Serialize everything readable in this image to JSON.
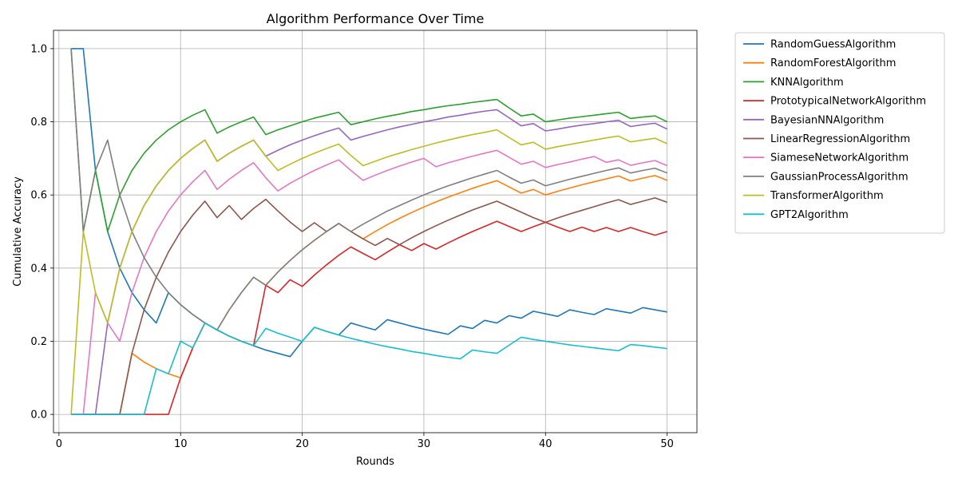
{
  "chart_data": {
    "type": "line",
    "title": "Algorithm Performance Over Time",
    "xlabel": "Rounds",
    "ylabel": "Cumulative Accuracy",
    "xlim": [
      -0.45,
      52.45
    ],
    "ylim": [
      -0.05,
      1.05
    ],
    "xticks": [
      0,
      10,
      20,
      30,
      40,
      50
    ],
    "yticks": [
      0.0,
      0.2,
      0.4,
      0.6,
      0.8,
      1.0
    ],
    "ytick_labels": [
      "0.0",
      "0.2",
      "0.4",
      "0.6",
      "0.8",
      "1.0"
    ],
    "grid": true,
    "legend": "outside-right",
    "x": [
      1,
      2,
      3,
      4,
      5,
      6,
      7,
      8,
      9,
      10,
      11,
      12,
      13,
      14,
      15,
      16,
      17,
      18,
      19,
      20,
      21,
      22,
      23,
      24,
      25,
      26,
      27,
      28,
      29,
      30,
      31,
      32,
      33,
      34,
      35,
      36,
      37,
      38,
      39,
      40,
      41,
      42,
      43,
      44,
      45,
      46,
      47,
      48,
      49,
      50
    ],
    "series": [
      {
        "name": "RandomGuessAlgorithm",
        "color": "#1f77b4",
        "values": [
          1,
          1,
          0.667,
          0.5,
          0.4,
          0.333,
          0.286,
          0.25,
          0.333,
          0.3,
          0.273,
          0.25,
          0.231,
          0.214,
          0.2,
          0.188,
          0.176,
          0.167,
          0.158,
          0.2,
          0.238,
          0.227,
          0.217,
          0.25,
          0.24,
          0.231,
          0.259,
          0.25,
          0.241,
          0.233,
          0.226,
          0.219,
          0.242,
          0.235,
          0.257,
          0.25,
          0.27,
          0.263,
          0.282,
          0.275,
          0.268,
          0.286,
          0.279,
          0.273,
          0.289,
          0.283,
          0.277,
          0.292,
          0.286,
          0.28
        ]
      },
      {
        "name": "RandomForestAlgorithm",
        "color": "#ff7f0e",
        "values": [
          0,
          0,
          0,
          0,
          0,
          0.167,
          0.143,
          0.125,
          0.111,
          0.1,
          0.182,
          0.25,
          0.231,
          0.286,
          0.333,
          0.375,
          0.353,
          0.389,
          0.421,
          0.45,
          0.476,
          0.5,
          0.522,
          0.5,
          0.48,
          0.5,
          0.519,
          0.536,
          0.552,
          0.567,
          0.581,
          0.594,
          0.606,
          0.618,
          0.629,
          0.639,
          0.622,
          0.605,
          0.615,
          0.6,
          0.61,
          0.619,
          0.628,
          0.636,
          0.644,
          0.652,
          0.638,
          0.646,
          0.653,
          0.64
        ]
      },
      {
        "name": "KNNAlgorithm",
        "color": "#2ca02c",
        "values": [
          1,
          0.5,
          0.667,
          0.5,
          0.6,
          0.667,
          0.714,
          0.75,
          0.778,
          0.8,
          0.818,
          0.833,
          0.769,
          0.786,
          0.8,
          0.813,
          0.765,
          0.778,
          0.789,
          0.8,
          0.81,
          0.818,
          0.826,
          0.792,
          0.8,
          0.808,
          0.815,
          0.821,
          0.828,
          0.833,
          0.839,
          0.844,
          0.848,
          0.853,
          0.857,
          0.861,
          0.838,
          0.816,
          0.821,
          0.8,
          0.805,
          0.81,
          0.814,
          0.818,
          0.822,
          0.826,
          0.809,
          0.813,
          0.816,
          0.8
        ]
      },
      {
        "name": "PrototypicalNetworkAlgorithm",
        "color": "#d62728",
        "values": [
          0,
          0,
          0,
          0,
          0,
          0,
          0,
          0,
          0,
          0.1,
          0.182,
          0.25,
          0.231,
          0.214,
          0.2,
          0.188,
          0.353,
          0.333,
          0.368,
          0.35,
          0.381,
          0.409,
          0.435,
          0.458,
          0.44,
          0.423,
          0.444,
          0.464,
          0.448,
          0.467,
          0.452,
          0.469,
          0.485,
          0.5,
          0.514,
          0.528,
          0.514,
          0.5,
          0.513,
          0.525,
          0.512,
          0.5,
          0.512,
          0.5,
          0.511,
          0.5,
          0.511,
          0.5,
          0.49,
          0.5
        ]
      },
      {
        "name": "BayesianNNAlgorithm",
        "color": "#9467bd",
        "values": [
          0,
          0,
          0,
          0.25,
          0.4,
          0.5,
          0.571,
          0.625,
          0.667,
          0.7,
          0.727,
          0.75,
          0.692,
          0.714,
          0.733,
          0.75,
          0.706,
          0.722,
          0.737,
          0.75,
          0.762,
          0.773,
          0.783,
          0.75,
          0.76,
          0.769,
          0.778,
          0.786,
          0.793,
          0.8,
          0.806,
          0.813,
          0.818,
          0.824,
          0.829,
          0.833,
          0.811,
          0.789,
          0.795,
          0.775,
          0.78,
          0.786,
          0.791,
          0.795,
          0.8,
          0.804,
          0.787,
          0.792,
          0.796,
          0.78
        ]
      },
      {
        "name": "LinearRegressionAlgorithm",
        "color": "#8c564b",
        "values": [
          0,
          0,
          0,
          0,
          0,
          0.167,
          0.286,
          0.375,
          0.444,
          0.5,
          0.545,
          0.583,
          0.538,
          0.571,
          0.533,
          0.563,
          0.588,
          0.556,
          0.526,
          0.5,
          0.524,
          0.5,
          0.522,
          0.5,
          0.48,
          0.462,
          0.481,
          0.464,
          0.483,
          0.5,
          0.516,
          0.531,
          0.545,
          0.559,
          0.571,
          0.583,
          0.568,
          0.553,
          0.538,
          0.525,
          0.537,
          0.548,
          0.558,
          0.568,
          0.578,
          0.587,
          0.574,
          0.583,
          0.592,
          0.58
        ]
      },
      {
        "name": "SiameseNetworkAlgorithm",
        "color": "#e377c2",
        "values": [
          0,
          0,
          0.333,
          0.25,
          0.2,
          0.333,
          0.429,
          0.5,
          0.556,
          0.6,
          0.636,
          0.667,
          0.615,
          0.643,
          0.667,
          0.688,
          0.647,
          0.611,
          0.632,
          0.65,
          0.667,
          0.682,
          0.696,
          0.667,
          0.64,
          0.654,
          0.667,
          0.679,
          0.69,
          0.7,
          0.677,
          0.688,
          0.697,
          0.706,
          0.714,
          0.722,
          0.703,
          0.684,
          0.692,
          0.675,
          0.683,
          0.69,
          0.698,
          0.705,
          0.689,
          0.696,
          0.681,
          0.688,
          0.694,
          0.68
        ]
      },
      {
        "name": "GaussianProcessAlgorithm",
        "color": "#7f7f7f",
        "values": [
          1,
          0.5,
          0.667,
          0.75,
          0.6,
          0.5,
          0.429,
          0.375,
          0.333,
          0.3,
          0.273,
          0.25,
          0.231,
          0.286,
          0.333,
          0.375,
          0.353,
          0.389,
          0.421,
          0.45,
          0.476,
          0.5,
          0.522,
          0.5,
          0.52,
          0.538,
          0.556,
          0.571,
          0.586,
          0.6,
          0.613,
          0.625,
          0.636,
          0.647,
          0.657,
          0.667,
          0.649,
          0.632,
          0.641,
          0.625,
          0.634,
          0.643,
          0.651,
          0.659,
          0.667,
          0.674,
          0.66,
          0.667,
          0.673,
          0.66
        ]
      },
      {
        "name": "TransformerAlgorithm",
        "color": "#bcbd22",
        "values": [
          0,
          0.5,
          0.333,
          0.25,
          0.4,
          0.5,
          0.571,
          0.625,
          0.667,
          0.7,
          0.727,
          0.75,
          0.692,
          0.714,
          0.733,
          0.75,
          0.706,
          0.667,
          0.684,
          0.7,
          0.714,
          0.727,
          0.739,
          0.708,
          0.68,
          0.692,
          0.704,
          0.714,
          0.724,
          0.733,
          0.742,
          0.75,
          0.758,
          0.765,
          0.771,
          0.778,
          0.757,
          0.737,
          0.744,
          0.725,
          0.732,
          0.738,
          0.744,
          0.75,
          0.756,
          0.761,
          0.745,
          0.75,
          0.755,
          0.74
        ]
      },
      {
        "name": "GPT2Algorithm",
        "color": "#17becf",
        "values": [
          0,
          0,
          0,
          0,
          0,
          0,
          0,
          0.125,
          0.111,
          0.2,
          0.182,
          0.25,
          0.231,
          0.214,
          0.2,
          0.188,
          0.235,
          0.222,
          0.211,
          0.2,
          0.238,
          0.227,
          0.217,
          0.208,
          0.2,
          0.192,
          0.185,
          0.179,
          0.172,
          0.167,
          0.161,
          0.156,
          0.152,
          0.176,
          0.171,
          0.167,
          0.189,
          0.211,
          0.205,
          0.2,
          0.195,
          0.19,
          0.186,
          0.182,
          0.178,
          0.174,
          0.191,
          0.188,
          0.184,
          0.18
        ]
      }
    ]
  }
}
